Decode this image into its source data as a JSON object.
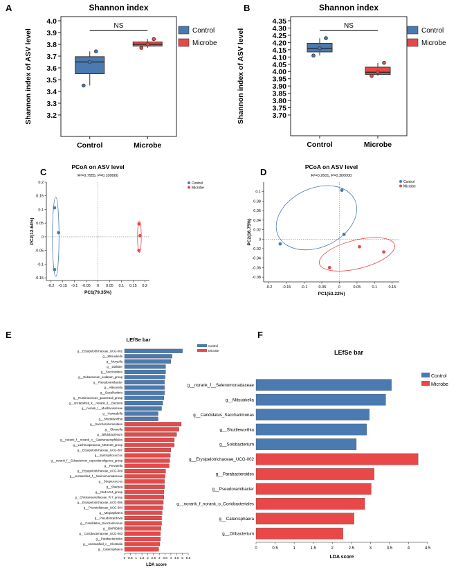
{
  "colors": {
    "control": "#4a7ab0",
    "microbe": "#e84848",
    "axis": "#222222",
    "grid": "#888888",
    "panel_box": "#999999"
  },
  "chart_data": [
    {
      "panel": "A",
      "type": "box",
      "title": "Shannon index",
      "ylabel": "Shannon index of ASV level",
      "categories": [
        "Control",
        "Microbe"
      ],
      "ylim": [
        3.2,
        4.0
      ],
      "yticks": [
        3.2,
        3.3,
        3.4,
        3.5,
        3.6,
        3.7,
        3.8,
        3.9,
        4.0
      ],
      "boxes": [
        {
          "group": "Control",
          "whisker_low": 3.45,
          "q1": 3.55,
          "median": 3.65,
          "q3": 3.695,
          "whisker_high": 3.74,
          "points": [
            3.45,
            3.65,
            3.74
          ]
        },
        {
          "group": "Microbe",
          "whisker_low": 3.77,
          "q1": 3.785,
          "median": 3.8,
          "q3": 3.82,
          "whisker_high": 3.845,
          "points": [
            3.77,
            3.8,
            3.845
          ]
        }
      ],
      "significance": "NS",
      "legend": [
        "Control",
        "Microbe"
      ]
    },
    {
      "panel": "B",
      "type": "box",
      "title": "Shannon index",
      "ylabel": "Shannon index of ASV level",
      "categories": [
        "Control",
        "Microbe"
      ],
      "ylim": [
        3.7,
        4.35
      ],
      "yticks": [
        3.7,
        3.75,
        3.8,
        3.85,
        3.9,
        3.95,
        4.0,
        4.05,
        4.1,
        4.15,
        4.2,
        4.25,
        4.3,
        4.35
      ],
      "ytick_labels": [
        "3.70",
        "3.75",
        "3.80",
        "3.85",
        "3.90",
        "3.95",
        "4.00",
        "4.05",
        "4.10",
        "4.15",
        "4.20",
        "4.25",
        "4.30",
        "4.35"
      ],
      "boxes": [
        {
          "group": "Control",
          "whisker_low": 4.11,
          "q1": 4.135,
          "median": 4.16,
          "q3": 4.195,
          "whisker_high": 4.23,
          "points": [
            4.11,
            4.16,
            4.23
          ]
        },
        {
          "group": "Microbe",
          "whisker_low": 3.97,
          "q1": 3.98,
          "median": 3.995,
          "q3": 4.03,
          "whisker_high": 4.06,
          "points": [
            3.97,
            3.995,
            4.06
          ]
        }
      ],
      "significance": "NS",
      "legend": [
        "Control",
        "Microbe"
      ]
    },
    {
      "panel": "C",
      "type": "scatter",
      "title": "PCoA on ASV level",
      "stats": "R²=0.7955, P=0.100000",
      "xlabel": "PC1(79.35%)",
      "ylabel": "PC2(12.64%)",
      "xlim": [
        -0.22,
        0.22
      ],
      "ylim": [
        -0.16,
        0.2
      ],
      "xticks": [
        -0.2,
        -0.15,
        -0.1,
        -0.05,
        0,
        0.05,
        0.1,
        0.15,
        0.2
      ],
      "xtick_labels": [
        "-0.2",
        "-0.15",
        "-0.1",
        "-0.05",
        "0",
        "0.05",
        "0.1",
        "0.15",
        "0.2"
      ],
      "yticks": [
        -0.15,
        -0.1,
        -0.05,
        0,
        0.05,
        0.1,
        0.15,
        0.2
      ],
      "ytick_labels": [
        "-0.15",
        "-0.1",
        "-0.05",
        "0",
        "0.05",
        "0.1",
        "0.15",
        "0.2"
      ],
      "series": [
        {
          "name": "Control",
          "x": [
            -0.185,
            -0.168,
            -0.185
          ],
          "y": [
            0.106,
            0.015,
            -0.12
          ]
        },
        {
          "name": "Microbe",
          "x": [
            0.175,
            0.18,
            0.175
          ],
          "y": [
            0.047,
            0.004,
            -0.05
          ]
        }
      ],
      "ellipses": [
        {
          "group": "Control",
          "cx": -0.18,
          "cy": 0.0,
          "rx": 0.014,
          "ry": 0.145
        },
        {
          "group": "Microbe",
          "cx": 0.177,
          "cy": 0.0,
          "rx": 0.008,
          "ry": 0.058
        }
      ],
      "legend": [
        "Control",
        "Microbe"
      ]
    },
    {
      "panel": "D",
      "type": "scatter",
      "title": "PCoA on ASV level",
      "stats": "R²=0.2601, P=0.300000",
      "xlabel": "PC1(53.22%)",
      "ylabel": "PC2(16.75%)",
      "xlim": [
        -0.215,
        0.17
      ],
      "ylim": [
        -0.09,
        0.12
      ],
      "xticks": [
        -0.2,
        -0.15,
        -0.1,
        -0.05,
        0,
        0.05,
        0.1,
        0.15
      ],
      "xtick_labels": [
        "-0.2",
        "-0.15",
        "-0.1",
        "-0.05",
        "0",
        "0.05",
        "0.1",
        "0.15"
      ],
      "yticks": [
        -0.08,
        -0.06,
        -0.04,
        -0.02,
        0,
        0.02,
        0.04,
        0.06,
        0.08,
        0.1
      ],
      "ytick_labels": [
        "-0.08",
        "-0.06",
        "-0.04",
        "-0.02",
        "0",
        "0.02",
        "0.04",
        "0.06",
        "0.08",
        "0.1"
      ],
      "series": [
        {
          "name": "Control",
          "x": [
            0.007,
            0.013,
            -0.168
          ],
          "y": [
            0.103,
            0.01,
            -0.01
          ]
        },
        {
          "name": "Microbe",
          "x": [
            -0.028,
            0.057,
            0.126
          ],
          "y": [
            -0.06,
            -0.016,
            -0.027
          ]
        }
      ],
      "ellipses": [
        {
          "group": "Control",
          "cx": -0.065,
          "cy": 0.045,
          "rx": 0.12,
          "ry": 0.062,
          "angle": -25
        },
        {
          "group": "Microbe",
          "cx": 0.05,
          "cy": -0.032,
          "rx": 0.11,
          "ry": 0.03,
          "angle": -14
        }
      ],
      "legend": [
        "Control",
        "Microbe"
      ]
    },
    {
      "panel": "E",
      "type": "bar",
      "title": "LEfSe bar",
      "xlabel": "LDA score",
      "xlim": [
        0,
        5.5
      ],
      "xticks": [
        0,
        0.5,
        1,
        1.5,
        2,
        2.5,
        3,
        3.5,
        4,
        4.5,
        5,
        5.5
      ],
      "xtick_labels": [
        "0",
        "0.5",
        "1",
        "1.5",
        "2",
        "2.5",
        "3",
        "3.5",
        "4",
        "4.5",
        "5",
        "5.5"
      ],
      "legend": [
        "Control",
        "Microbe"
      ],
      "bars": [
        {
          "label": "g__Erysipelotrichaceae_UCG-002",
          "value": 5.0,
          "group": "Control"
        },
        {
          "label": "g__Mitsuokella",
          "value": 4.1,
          "group": "Control"
        },
        {
          "label": "g__Moryella",
          "value": 4.0,
          "group": "Control"
        },
        {
          "label": "g__Dialister",
          "value": 3.55,
          "group": "Control"
        },
        {
          "label": "g__Succinivibrio",
          "value": 3.55,
          "group": "Control"
        },
        {
          "label": "g__Eubacterium_nodatum_group",
          "value": 3.5,
          "group": "Control"
        },
        {
          "label": "g__Pseudoramibacter",
          "value": 3.45,
          "group": "Control"
        },
        {
          "label": "g__Allisonella",
          "value": 3.45,
          "group": "Control"
        },
        {
          "label": "g__Desulfovibrio",
          "value": 3.45,
          "group": "Control"
        },
        {
          "label": "g__Ruminococcus_gauvreauii_group",
          "value": 3.4,
          "group": "Control"
        },
        {
          "label": "g__unclassified_k__norank_d__Bacteria",
          "value": 3.3,
          "group": "Control"
        },
        {
          "label": "g__norank_f__Muribaculaceae",
          "value": 3.2,
          "group": "Control"
        },
        {
          "label": "g__Howardella",
          "value": 2.9,
          "group": "Control"
        },
        {
          "label": "g__Shuttleworthia",
          "value": 2.9,
          "group": "Control"
        },
        {
          "label": "g__Saccharofermentans",
          "value": 4.9,
          "group": "Microbe"
        },
        {
          "label": "g__Olsenella",
          "value": 4.7,
          "group": "Microbe"
        },
        {
          "label": "g__Bifidobacterium",
          "value": 4.5,
          "group": "Microbe"
        },
        {
          "label": "g__norank_f__norank_o__Gastranaerophilales",
          "value": 4.3,
          "group": "Microbe"
        },
        {
          "label": "g__Lachnospiraceae_NK3A20_group",
          "value": 4.3,
          "group": "Microbe"
        },
        {
          "label": "g__Erysipelotrichaceae_UCG-007",
          "value": 4.0,
          "group": "Microbe"
        },
        {
          "label": "g__Syntrophococcus",
          "value": 3.95,
          "group": "Microbe"
        },
        {
          "label": "g__norank_f__Eubacterium_coprostanoligenes_group",
          "value": 3.9,
          "group": "Microbe"
        },
        {
          "label": "g__Prevotella",
          "value": 3.85,
          "group": "Microbe"
        },
        {
          "label": "g__Erysipelotrichaceae_UCG-009",
          "value": 3.55,
          "group": "Microbe"
        },
        {
          "label": "g__unclassified_f__Selenomonadaceae",
          "value": 3.5,
          "group": "Microbe"
        },
        {
          "label": "g__Streptococcus",
          "value": 3.45,
          "group": "Microbe"
        },
        {
          "label": "g__Sharpea",
          "value": 3.45,
          "group": "Microbe"
        },
        {
          "label": "g__NK4A214_group",
          "value": 3.4,
          "group": "Microbe"
        },
        {
          "label": "g__Christensenellaceae_R-7_group",
          "value": 3.4,
          "group": "Microbe"
        },
        {
          "label": "g__Erysipelotrichaceae_UCG-006",
          "value": 3.35,
          "group": "Microbe"
        },
        {
          "label": "g__Prevotellaceae_UCG-004",
          "value": 3.3,
          "group": "Microbe"
        },
        {
          "label": "g__Megasphaera",
          "value": 3.25,
          "group": "Microbe"
        },
        {
          "label": "g__Pseudoscardovia",
          "value": 3.2,
          "group": "Microbe"
        },
        {
          "label": "g__Candidatus_Saccharimonas",
          "value": 3.2,
          "group": "Microbe"
        },
        {
          "label": "g__DNF00809",
          "value": 3.15,
          "group": "Microbe"
        },
        {
          "label": "g__Coriobacteriaceae_UCG-003",
          "value": 3.1,
          "group": "Microbe"
        },
        {
          "label": "g__Parabacteroides",
          "value": 3.1,
          "group": "Microbe"
        },
        {
          "label": "g__unclassified_c__Clostridia",
          "value": 3.05,
          "group": "Microbe"
        },
        {
          "label": "g__Catenisphaera",
          "value": 2.95,
          "group": "Microbe"
        }
      ]
    },
    {
      "panel": "F",
      "type": "bar",
      "title": "LEfSe bar",
      "xlabel": "LDA score",
      "xlim": [
        0,
        4.5
      ],
      "xticks": [
        0,
        0.5,
        1,
        1.5,
        2,
        2.5,
        3,
        3.5,
        4,
        4.5
      ],
      "xtick_labels": [
        "0",
        "0.5",
        "1",
        "1.5",
        "2",
        "2.5",
        "3",
        "3.5",
        "4",
        "4.5"
      ],
      "legend": [
        "Control",
        "Microbe"
      ],
      "bars": [
        {
          "label": "g__norank_f__Selenomonadaceae",
          "value": 3.55,
          "group": "Control"
        },
        {
          "label": "g__Mitsuokella",
          "value": 3.4,
          "group": "Control"
        },
        {
          "label": "g__Candidatus_Saccharimonas",
          "value": 2.97,
          "group": "Control"
        },
        {
          "label": "g__Shuttleworthia",
          "value": 2.9,
          "group": "Control"
        },
        {
          "label": "g__Solobacterium",
          "value": 2.63,
          "group": "Control"
        },
        {
          "label": "g__Erysipelotrichaceae_UCG-002",
          "value": 4.25,
          "group": "Microbe"
        },
        {
          "label": "g__Parabacteroides",
          "value": 3.1,
          "group": "Microbe"
        },
        {
          "label": "g__Pseudoramibacter",
          "value": 3.02,
          "group": "Microbe"
        },
        {
          "label": "g__norank_f_norank_o_Coriobacteriales",
          "value": 2.85,
          "group": "Microbe"
        },
        {
          "label": "g__Catenisphaera",
          "value": 2.57,
          "group": "Microbe"
        },
        {
          "label": "g__Oribacterium",
          "value": 2.28,
          "group": "Microbe"
        }
      ]
    }
  ]
}
